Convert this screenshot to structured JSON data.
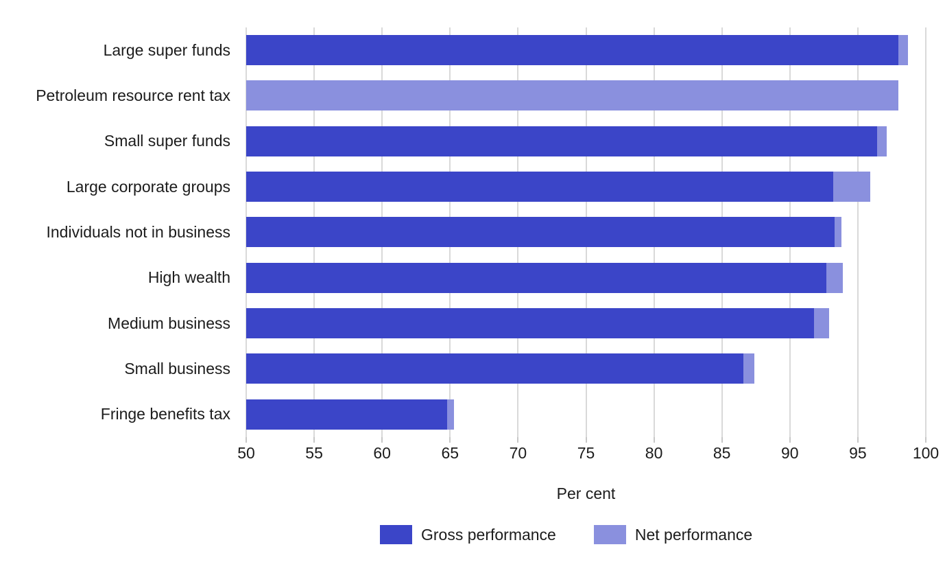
{
  "chart_data": {
    "type": "bar",
    "orientation": "horizontal",
    "title": "",
    "xlabel": "Per cent",
    "xlim": [
      50,
      100
    ],
    "xticks": [
      50,
      55,
      60,
      65,
      70,
      75,
      80,
      85,
      90,
      95,
      100
    ],
    "grid": true,
    "legend_position": "bottom",
    "categories": [
      "Large super funds",
      "Petroleum resource rent tax",
      "Small super funds",
      "Large corporate groups",
      "Individuals not in business",
      "High wealth",
      "Medium business",
      "Small business",
      "Fringe benefits tax"
    ],
    "series": [
      {
        "name": "Gross performance",
        "color": "#3B45C8",
        "values": [
          98.0,
          null,
          96.4,
          93.2,
          93.3,
          92.7,
          91.8,
          86.6,
          64.8
        ]
      },
      {
        "name": "Net performance",
        "color": "#8A90DE",
        "values": [
          98.7,
          98.0,
          97.1,
          95.9,
          93.8,
          93.9,
          92.9,
          87.4,
          65.3
        ]
      }
    ]
  },
  "colors": {
    "gridline": "#D9D9D9",
    "tick": "#C7C7C7",
    "text": "#1C1C1C",
    "background": "#FFFFFF"
  }
}
